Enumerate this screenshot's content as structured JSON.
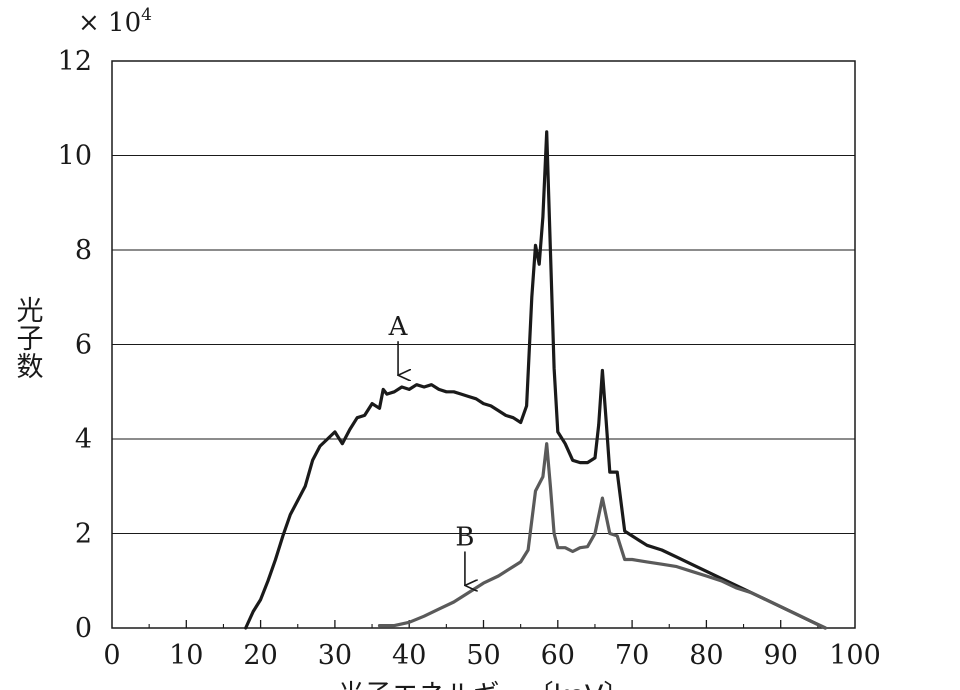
{
  "chart_data": {
    "type": "line",
    "title": "",
    "multiplier": "× 10",
    "multiplier_exp": "4",
    "xlabel": "光子エネルギー〔keV〕",
    "ylabel": "光子数",
    "xlim": [
      0,
      100
    ],
    "ylim": [
      0,
      12
    ],
    "xticks": [
      0,
      10,
      20,
      30,
      40,
      50,
      60,
      70,
      80,
      90,
      100
    ],
    "yticks": [
      0,
      2,
      4,
      6,
      8,
      10,
      12
    ],
    "grid": "horizontal",
    "series": [
      {
        "name": "A",
        "color": "#1a1a1a",
        "points": [
          [
            18,
            0
          ],
          [
            19,
            0.35
          ],
          [
            20,
            0.6
          ],
          [
            21,
            1.0
          ],
          [
            22,
            1.45
          ],
          [
            23,
            1.95
          ],
          [
            24,
            2.4
          ],
          [
            25,
            2.7
          ],
          [
            26,
            3.0
          ],
          [
            27,
            3.55
          ],
          [
            28,
            3.85
          ],
          [
            29,
            4.0
          ],
          [
            30,
            4.15
          ],
          [
            31,
            3.9
          ],
          [
            32,
            4.2
          ],
          [
            33,
            4.45
          ],
          [
            34,
            4.5
          ],
          [
            35,
            4.75
          ],
          [
            36,
            4.65
          ],
          [
            36.5,
            5.05
          ],
          [
            37,
            4.95
          ],
          [
            38,
            5.0
          ],
          [
            39,
            5.1
          ],
          [
            40,
            5.05
          ],
          [
            41,
            5.15
          ],
          [
            42,
            5.1
          ],
          [
            43,
            5.15
          ],
          [
            44,
            5.05
          ],
          [
            45,
            5.0
          ],
          [
            46,
            5.0
          ],
          [
            47,
            4.95
          ],
          [
            48,
            4.9
          ],
          [
            49,
            4.85
          ],
          [
            50,
            4.75
          ],
          [
            51,
            4.7
          ],
          [
            52,
            4.6
          ],
          [
            53,
            4.5
          ],
          [
            54,
            4.45
          ],
          [
            55,
            4.35
          ],
          [
            55.8,
            4.7
          ],
          [
            56.5,
            7.0
          ],
          [
            57,
            8.1
          ],
          [
            57.5,
            7.7
          ],
          [
            58,
            8.7
          ],
          [
            58.5,
            10.5
          ],
          [
            59,
            8.0
          ],
          [
            59.5,
            5.5
          ],
          [
            60,
            4.15
          ],
          [
            61,
            3.9
          ],
          [
            62,
            3.55
          ],
          [
            63,
            3.5
          ],
          [
            64,
            3.5
          ],
          [
            65,
            3.6
          ],
          [
            65.5,
            4.3
          ],
          [
            66,
            5.45
          ],
          [
            66.5,
            4.4
          ],
          [
            67,
            3.3
          ],
          [
            68,
            3.3
          ],
          [
            69,
            2.05
          ],
          [
            70,
            1.95
          ],
          [
            71,
            1.85
          ],
          [
            72,
            1.75
          ],
          [
            74,
            1.65
          ],
          [
            76,
            1.5
          ],
          [
            78,
            1.35
          ],
          [
            80,
            1.2
          ],
          [
            82,
            1.05
          ],
          [
            84,
            0.9
          ],
          [
            86,
            0.75
          ],
          [
            88,
            0.6
          ],
          [
            90,
            0.45
          ],
          [
            92,
            0.3
          ],
          [
            94,
            0.15
          ],
          [
            96,
            0.0
          ]
        ]
      },
      {
        "name": "B",
        "color": "#5a5a5a",
        "points": [
          [
            36,
            0.05
          ],
          [
            38,
            0.05
          ],
          [
            40,
            0.12
          ],
          [
            42,
            0.25
          ],
          [
            44,
            0.4
          ],
          [
            46,
            0.55
          ],
          [
            48,
            0.75
          ],
          [
            50,
            0.95
          ],
          [
            52,
            1.1
          ],
          [
            54,
            1.3
          ],
          [
            55,
            1.4
          ],
          [
            56,
            1.65
          ],
          [
            57,
            2.9
          ],
          [
            58,
            3.2
          ],
          [
            58.5,
            3.9
          ],
          [
            59,
            3.0
          ],
          [
            59.5,
            2.0
          ],
          [
            60,
            1.7
          ],
          [
            61,
            1.7
          ],
          [
            62,
            1.62
          ],
          [
            63,
            1.7
          ],
          [
            64,
            1.72
          ],
          [
            65,
            2.0
          ],
          [
            66,
            2.75
          ],
          [
            67,
            2.0
          ],
          [
            68,
            1.95
          ],
          [
            69,
            1.45
          ],
          [
            70,
            1.45
          ],
          [
            72,
            1.4
          ],
          [
            74,
            1.35
          ],
          [
            76,
            1.3
          ],
          [
            78,
            1.2
          ],
          [
            80,
            1.1
          ],
          [
            82,
            1.0
          ],
          [
            84,
            0.85
          ],
          [
            86,
            0.75
          ],
          [
            88,
            0.6
          ],
          [
            90,
            0.45
          ],
          [
            92,
            0.3
          ],
          [
            94,
            0.15
          ],
          [
            96,
            0.0
          ]
        ]
      }
    ],
    "annotations": [
      {
        "label": "A",
        "arrow_x": 38.5,
        "arrow_y": 5.35
      },
      {
        "label": "B",
        "arrow_x": 47.5,
        "arrow_y": 0.9
      }
    ]
  }
}
